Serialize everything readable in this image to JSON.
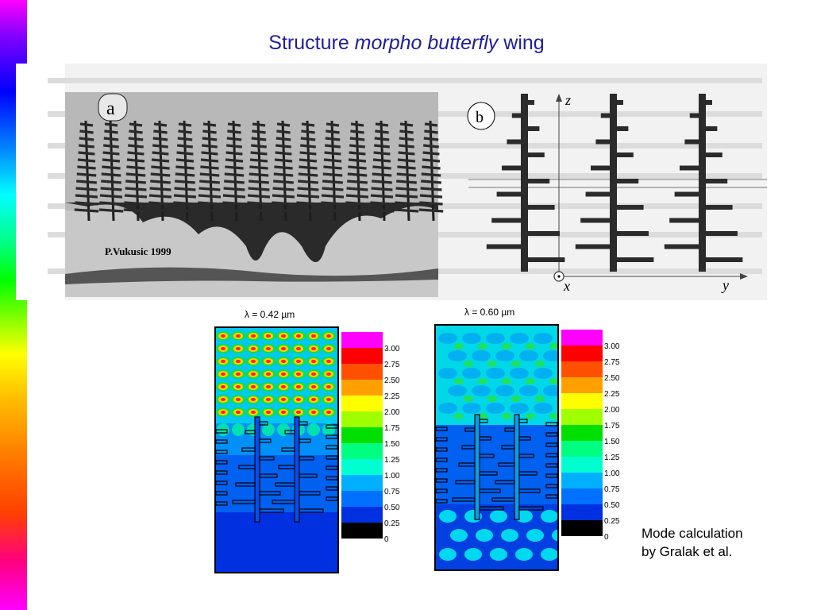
{
  "slide": {
    "title_prefix": "Structure ",
    "title_italic": "morpho butterfly",
    "title_suffix": " wing",
    "caption_line1": "Mode calculation",
    "caption_line2": "by Gralak et al."
  },
  "figure": {
    "label_a": "a",
    "credit": "P.Vukusic 1999",
    "label_b": "b",
    "axis_z": "z",
    "axis_x": "x",
    "axis_y": "y"
  },
  "field_maps": [
    {
      "lambda": "λ = 0.42 µm"
    },
    {
      "lambda": "λ = 0.60 µm"
    }
  ],
  "colorbar": {
    "ticks": [
      "3.00",
      "2.75",
      "2.50",
      "2.25",
      "2.00",
      "1.75",
      "1.50",
      "1.25",
      "1.00",
      "0.75",
      "0.50",
      "0.25",
      "0"
    ],
    "colors": [
      "#ff00ff",
      "#ff0000",
      "#ff5000",
      "#ffa000",
      "#ffff00",
      "#a0ff00",
      "#00e000",
      "#00ff80",
      "#00ffd0",
      "#00b0ff",
      "#0070ff",
      "#0030e0",
      "#000000"
    ]
  }
}
